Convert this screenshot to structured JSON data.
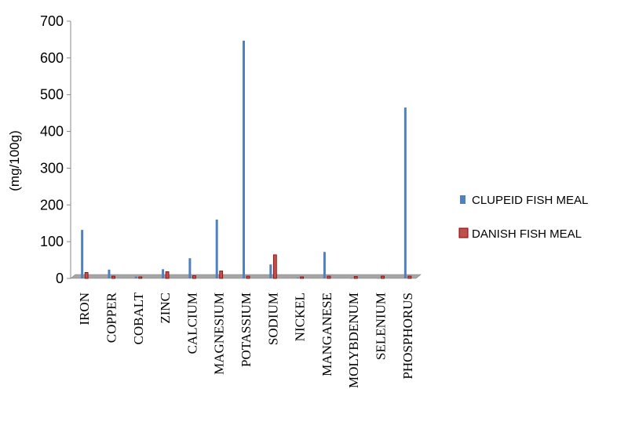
{
  "chart_data": {
    "type": "bar",
    "title": "",
    "xlabel": "",
    "ylabel": "(mg/100g)",
    "ylim": [
      0,
      700
    ],
    "yticks": [
      "0",
      "100",
      "200",
      "300",
      "400",
      "500",
      "600",
      "700"
    ],
    "grid": false,
    "legend_position": "right",
    "categories": [
      "IRON",
      "COPPER",
      "COBALT",
      "ZINC",
      "CALCIUM",
      "MAGNESIUM",
      "POTASSIUM",
      "SODIUM",
      "NICKEL",
      "MANGANESE",
      "MOLYBDENUM",
      "SELENIUM",
      "PHOSPHORUS"
    ],
    "series": [
      {
        "name": "CLUPEID FISH MEAL",
        "color": "#4F81BD",
        "values": [
          132,
          24,
          5,
          25,
          55,
          160,
          647,
          38,
          2,
          72,
          0.5,
          0.5,
          465
        ]
      },
      {
        "name": "DANISH FISH MEAL",
        "color": "#C0504D",
        "values": [
          12,
          2,
          0,
          14,
          3,
          16,
          2,
          60,
          0,
          2,
          1,
          2,
          2
        ]
      }
    ]
  }
}
